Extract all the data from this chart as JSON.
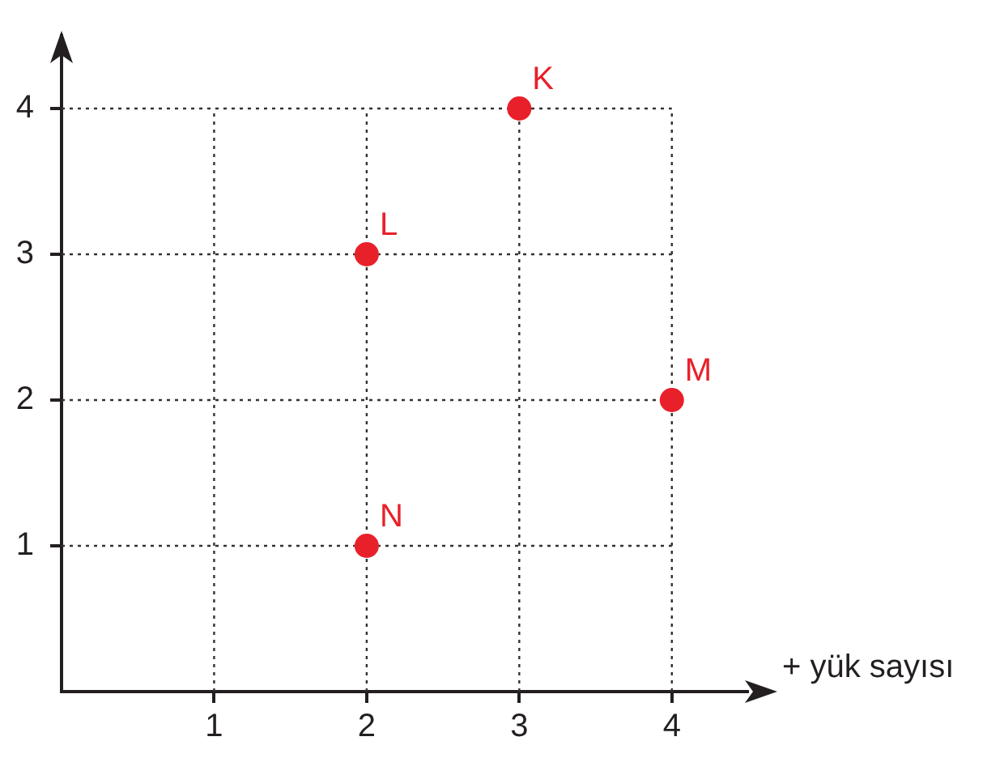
{
  "chart_data": {
    "type": "scatter",
    "xlabel": "+ yük sayısı",
    "x": [
      3,
      2,
      4,
      2
    ],
    "series": [
      {
        "color": "#e8202a",
        "values": [
          4,
          3,
          2,
          1
        ]
      }
    ],
    "xlim": [
      0,
      4.5
    ],
    "ylim": [
      0,
      4.5
    ],
    "xticks": [
      1,
      2,
      3,
      4
    ],
    "yticks": [
      1,
      2,
      3,
      4
    ],
    "grid": true,
    "marker": "circle",
    "annotations": [
      {
        "text": "K",
        "x": 3,
        "y": 4
      },
      {
        "text": "L",
        "x": 2,
        "y": 3
      },
      {
        "text": "M",
        "x": 4,
        "y": 2
      },
      {
        "text": "N",
        "x": 2,
        "y": 1
      }
    ]
  }
}
